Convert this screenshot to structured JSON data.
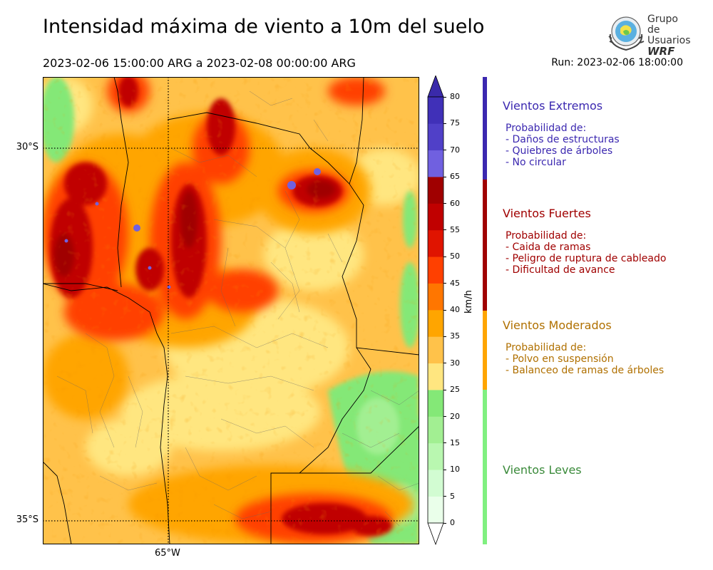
{
  "title": "Intensidad máxima de viento a 10m del suelo",
  "period": "2023-02-06 15:00:00 ARG  a  2023-02-08 00:00:00 ARG",
  "run": "Run: 2023-02-06 18:00:00",
  "logo": {
    "line1": "Grupo de",
    "line2": "Usuarios",
    "line3": "WRF"
  },
  "map": {
    "lat_labels": [
      "30°S",
      "35°S"
    ],
    "lon_labels": [
      "65°W"
    ]
  },
  "colorbar": {
    "unit": "km/h",
    "ticks": [
      "0",
      "5",
      "10",
      "15",
      "20",
      "25",
      "30",
      "35",
      "40",
      "45",
      "50",
      "55",
      "60",
      "65",
      "70",
      "75",
      "80"
    ],
    "colors": [
      "#eaffea",
      "#d2fcd2",
      "#b9f7b0",
      "#a2ef92",
      "#84e877",
      "#ffe680",
      "#ffc24a",
      "#ffa500",
      "#ff7600",
      "#ff4000",
      "#e01400",
      "#c00000",
      "#a00000",
      "#7060e0",
      "#5040c8",
      "#4030b8"
    ],
    "extend_colors": {
      "low": "#ffffff",
      "high": "#3a2aaa"
    }
  },
  "categories": [
    {
      "title": "Vientos Extremos",
      "color": "#3b28b0",
      "bar": "#3b28b0",
      "lines": [
        "Probabilidad de:",
        "- Daños de estructuras",
        "- Quiebres de árboles",
        "- No circular"
      ]
    },
    {
      "title": "Vientos Fuertes",
      "color": "#a00000",
      "bar": "#a00000",
      "lines": [
        "Probabilidad de:",
        "- Caida de ramas",
        "- Peligro de ruptura de cableado",
        "- Dificultad de avance"
      ]
    },
    {
      "title": "Vientos Moderados",
      "color": "#b07000",
      "bar": "#ffa500",
      "lines": [
        "Probabilidad de:",
        "- Polvo en suspensión",
        "- Balanceo de ramas de árboles"
      ]
    },
    {
      "title": "Vientos Leves",
      "color": "#3a8a3a",
      "bar": "#80f080",
      "lines": []
    }
  ]
}
